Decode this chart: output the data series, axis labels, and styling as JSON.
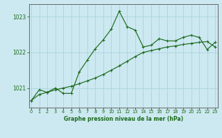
{
  "title": "Graphe pression niveau de la mer (hPa)",
  "bg_color": "#cce8f0",
  "grid_color": "#aad4dd",
  "line_color": "#1a6b1a",
  "x_ticks": [
    0,
    1,
    2,
    3,
    4,
    5,
    6,
    7,
    8,
    9,
    10,
    11,
    12,
    13,
    14,
    15,
    16,
    17,
    18,
    19,
    20,
    21,
    22,
    23
  ],
  "y_ticks": [
    1021,
    1022,
    1023
  ],
  "ylim": [
    1020.45,
    1023.35
  ],
  "xlim": [
    -0.3,
    23.3
  ],
  "series1_x": [
    0,
    1,
    2,
    3,
    4,
    5,
    6,
    7,
    8,
    9,
    10,
    11,
    12,
    13,
    14,
    15,
    16,
    17,
    18,
    19,
    20,
    21,
    22,
    23
  ],
  "series1_y": [
    1020.65,
    1020.82,
    1020.88,
    1020.95,
    1021.0,
    1021.05,
    1021.12,
    1021.2,
    1021.28,
    1021.38,
    1021.5,
    1021.62,
    1021.75,
    1021.88,
    1022.0,
    1022.05,
    1022.1,
    1022.15,
    1022.18,
    1022.22,
    1022.25,
    1022.28,
    1022.3,
    1022.15
  ],
  "series2_x": [
    0,
    1,
    2,
    3,
    4,
    5,
    6,
    7,
    8,
    9,
    10,
    11,
    12,
    13,
    14,
    15,
    16,
    17,
    18,
    19,
    20,
    21,
    22,
    23
  ],
  "series2_y": [
    1020.65,
    1020.95,
    1020.88,
    1021.0,
    1020.85,
    1020.85,
    1021.45,
    1021.78,
    1022.1,
    1022.35,
    1022.65,
    1023.15,
    1022.72,
    1022.62,
    1022.15,
    1022.2,
    1022.38,
    1022.32,
    1022.32,
    1022.42,
    1022.48,
    1022.42,
    1022.08,
    1022.28
  ]
}
